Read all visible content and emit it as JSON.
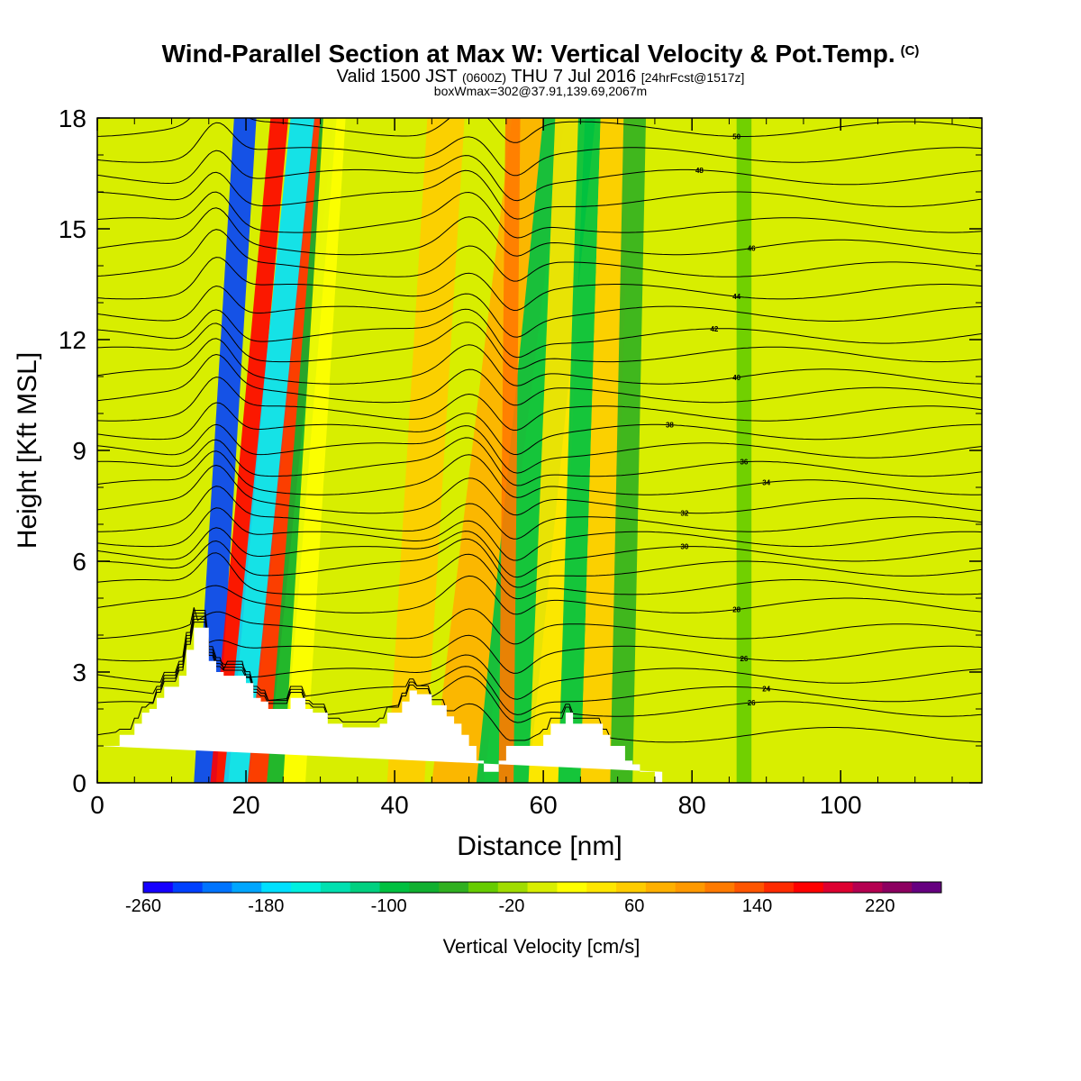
{
  "header": {
    "title": "Wind-Parallel Section at Max W: Vertical Velocity & Pot.Temp.",
    "copyright": "(C)",
    "valid_prefix": "Valid 1500 JST",
    "valid_z": "(0600Z)",
    "valid_date": "THU 7 Jul 2016",
    "forecast": "[24hrFcst@1517z]",
    "box_info": "boxWmax=302@37.91,139.69,2067m"
  },
  "colorbar": {
    "label": "Vertical Velocity [cm/s]",
    "tick_labels": [
      "-260",
      "-180",
      "-100",
      "-20",
      "60",
      "140",
      "220"
    ],
    "colors": [
      "#1500ff",
      "#0040ff",
      "#0074ff",
      "#00a6ff",
      "#00e0ff",
      "#00f0e0",
      "#00e0b0",
      "#00d080",
      "#00c040",
      "#10b030",
      "#30b020",
      "#66cc00",
      "#a0dc00",
      "#d8ee00",
      "#ffff00",
      "#ffe600",
      "#ffcc00",
      "#ffb000",
      "#ff9900",
      "#ff7a00",
      "#ff5500",
      "#ff2a00",
      "#ff0000",
      "#dd0030",
      "#b40050",
      "#8c0060",
      "#660080"
    ]
  },
  "chart_data": {
    "type": "heatmap",
    "title": "Wind-Parallel Section at Max W: Vertical Velocity & Pot.Temp.",
    "xlabel": "Distance [nm]",
    "ylabel": "Height [Kft MSL]",
    "xlim": [
      0,
      119
    ],
    "ylim": [
      0,
      18
    ],
    "x_ticks": [
      0,
      20,
      40,
      60,
      80,
      100
    ],
    "y_ticks": [
      0,
      3,
      6,
      9,
      12,
      15,
      18
    ],
    "colorbar_range": [
      -260,
      260
    ],
    "colorbar_step": 20,
    "terrain_profile": {
      "x": [
        0,
        3,
        3,
        5,
        5,
        6,
        6,
        7,
        7,
        8,
        8,
        9,
        9,
        11,
        11,
        12,
        12,
        13,
        13,
        15,
        15,
        16,
        16,
        17,
        17,
        20,
        20,
        21,
        21,
        22,
        22,
        23,
        23,
        26,
        26,
        28,
        28,
        29,
        29,
        31,
        31,
        33,
        33,
        38,
        38,
        39,
        39,
        41,
        41,
        42,
        42,
        43,
        43,
        45,
        45,
        47,
        47,
        48,
        48,
        49,
        49,
        50,
        50,
        51,
        51,
        52,
        52,
        54,
        54,
        55,
        55,
        60,
        60,
        61,
        61,
        63,
        63,
        64,
        64,
        68,
        68,
        69,
        69,
        71,
        71,
        72,
        72,
        73,
        73,
        75,
        75,
        76,
        76,
        119
      ],
      "y": [
        1.0,
        1.0,
        1.3,
        1.3,
        1.6,
        1.6,
        1.9,
        1.9,
        2.0,
        2.0,
        2.3,
        2.3,
        2.6,
        2.6,
        2.9,
        2.9,
        3.6,
        3.6,
        4.2,
        4.2,
        3.3,
        3.3,
        3.0,
        3.0,
        2.9,
        2.9,
        2.7,
        2.7,
        2.3,
        2.3,
        2.2,
        2.2,
        2.0,
        2.0,
        2.3,
        2.3,
        2.0,
        2.0,
        1.9,
        1.9,
        1.6,
        1.6,
        1.5,
        1.5,
        1.6,
        1.6,
        1.9,
        1.9,
        2.2,
        2.2,
        2.5,
        2.5,
        2.4,
        2.4,
        2.1,
        2.1,
        1.8,
        1.8,
        1.6,
        1.6,
        1.3,
        1.3,
        1.0,
        1.0,
        0.6,
        0.6,
        0.3,
        0.3,
        0.6,
        0.6,
        1.0,
        1.0,
        1.3,
        1.3,
        1.6,
        1.6,
        1.9,
        1.9,
        1.6,
        1.6,
        1.3,
        1.3,
        1.0,
        1.0,
        0.6,
        0.6,
        0.5,
        0.5,
        0.3,
        0.3,
        0.0,
        0.0,
        0.3
      ]
    },
    "velocity_bands": [
      {
        "x0": 13.0,
        "x1": 16.0,
        "tilt": 0.3,
        "value": -240
      },
      {
        "x0": 15.2,
        "x1": 17.6,
        "tilt": 0.45,
        "value": 180
      },
      {
        "x0": 17.0,
        "x1": 20.4,
        "tilt": 0.5,
        "value": -180
      },
      {
        "x0": 20.2,
        "x1": 22.8,
        "tilt": 0.5,
        "value": 160
      },
      {
        "x0": 22.8,
        "x1": 25.0,
        "tilt": 0.4,
        "value": -80
      },
      {
        "x0": 25.0,
        "x1": 28.0,
        "tilt": 0.3,
        "value": 20
      },
      {
        "x0": 39.0,
        "x1": 44.0,
        "tilt": 0.3,
        "value": 60
      },
      {
        "x0": 45.0,
        "x1": 52.0,
        "tilt": 0.6,
        "value": 80
      },
      {
        "x0": 51.0,
        "x1": 58.0,
        "tilt": 0.5,
        "value": -100
      },
      {
        "x0": 54.0,
        "x1": 56.0,
        "tilt": 0.05,
        "value": 120
      },
      {
        "x0": 58.0,
        "x1": 62.0,
        "tilt": 0.2,
        "value": 40
      },
      {
        "x0": 62.0,
        "x1": 65.0,
        "tilt": 0.15,
        "value": -100
      },
      {
        "x0": 65.0,
        "x1": 69.0,
        "tilt": 0.15,
        "value": 60
      },
      {
        "x0": 69.0,
        "x1": 72.0,
        "tilt": 0.1,
        "value": -60
      },
      {
        "x0": 86.0,
        "x1": 88.0,
        "tilt": 0.0,
        "value": -40
      }
    ],
    "theta_contours": {
      "base_heights": [
        1.3,
        2.0,
        2.4,
        2.9,
        3.5,
        4.1,
        4.8,
        5.3,
        5.8,
        6.2,
        6.6,
        7.0,
        7.5,
        8.0,
        8.5,
        9.0,
        9.5,
        10.0,
        10.5,
        11.0,
        11.6,
        12.1,
        12.7,
        13.3,
        13.9,
        14.5,
        15.1,
        15.8,
        16.4,
        17.0,
        17.7
      ],
      "labeled": [
        {
          "index": 1,
          "label": "26",
          "x": 88
        },
        {
          "index": 2,
          "label": "24",
          "x": 90
        },
        {
          "index": 4,
          "label": "26",
          "x": 87
        },
        {
          "index": 6,
          "label": "28",
          "x": 86
        },
        {
          "index": 9,
          "label": "30",
          "x": 79
        },
        {
          "index": 12,
          "label": "32",
          "x": 79
        },
        {
          "index": 13,
          "label": "34",
          "x": 90
        },
        {
          "index": 14,
          "label": "36",
          "x": 87
        },
        {
          "index": 16,
          "label": "38",
          "x": 77
        },
        {
          "index": 19,
          "label": "40",
          "x": 86
        },
        {
          "index": 21,
          "label": "42",
          "x": 83
        },
        {
          "index": 23,
          "label": "44",
          "x": 86
        },
        {
          "index": 25,
          "label": "46",
          "x": 88
        },
        {
          "index": 28,
          "label": "48",
          "x": 81
        },
        {
          "index": 30,
          "label": "50",
          "x": 86
        }
      ]
    }
  }
}
